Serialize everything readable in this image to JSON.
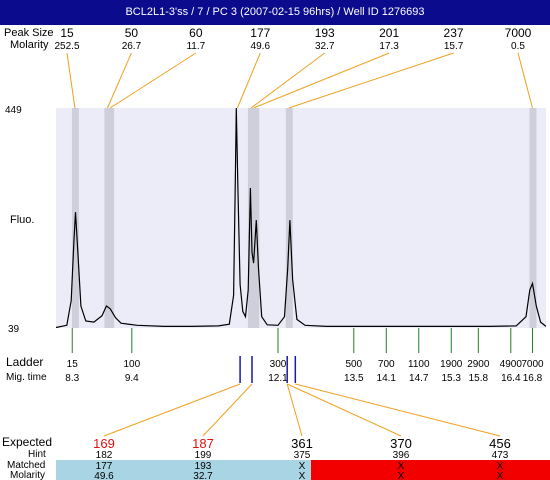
{
  "title": "BCL2L1-3'ss / 7 / PC 3 (2007-02-15 96hrs) / Well ID 1276693",
  "labels": {
    "peak_size": "Peak Size",
    "molarity": "Molarity",
    "fluo": "Fluo.",
    "ladder": "Ladder",
    "mig_time": "Mig. time",
    "expected": "Expected",
    "hint": "Hint",
    "matched": "Matched",
    "molarity2": "Molarity"
  },
  "colors": {
    "title_bg": "#0b0b8e",
    "plot_bg": "#ececf8",
    "peak_band": "#cfcfdc",
    "peak_connector": "#f0a020",
    "ladder_tick": "#208020",
    "mig_marker": "#1a1aa0",
    "expected_red": "#e31010",
    "matched_ok": "#a8d4e4",
    "matched_fail": "#f20000"
  },
  "chart_data": {
    "type": "line",
    "ylabel": "Fluo.",
    "ylim": [
      39,
      449
    ],
    "y_ticks": [
      "449",
      "39"
    ],
    "peaks": [
      {
        "size": "15",
        "molarity": "252.5",
        "time": 8.35
      },
      {
        "size": "50",
        "molarity": "26.7",
        "time": 8.95
      },
      {
        "size": "60",
        "molarity": "11.7",
        "time": 9.0
      },
      {
        "size": "177",
        "molarity": "49.6",
        "time": 11.35
      },
      {
        "size": "193",
        "molarity": "32.7",
        "time": 11.6
      },
      {
        "size": "201",
        "molarity": "17.3",
        "time": 11.65
      },
      {
        "size": "237",
        "molarity": "15.7",
        "time": 12.3
      },
      {
        "size": "7000",
        "molarity": "0.5",
        "time": 16.8
      }
    ],
    "trace": [
      [
        8.0,
        40
      ],
      [
        8.2,
        44
      ],
      [
        8.28,
        90
      ],
      [
        8.33,
        200
      ],
      [
        8.36,
        255
      ],
      [
        8.4,
        185
      ],
      [
        8.46,
        80
      ],
      [
        8.55,
        52
      ],
      [
        8.7,
        50
      ],
      [
        8.85,
        62
      ],
      [
        8.93,
        80
      ],
      [
        9.0,
        75
      ],
      [
        9.1,
        58
      ],
      [
        9.2,
        48
      ],
      [
        9.5,
        44
      ],
      [
        10.0,
        42
      ],
      [
        10.5,
        42
      ],
      [
        11.0,
        43
      ],
      [
        11.2,
        46
      ],
      [
        11.28,
        100
      ],
      [
        11.31,
        300
      ],
      [
        11.33,
        449
      ],
      [
        11.36,
        300
      ],
      [
        11.4,
        120
      ],
      [
        11.45,
        70
      ],
      [
        11.5,
        60
      ],
      [
        11.55,
        110
      ],
      [
        11.59,
        300
      ],
      [
        11.62,
        180
      ],
      [
        11.65,
        160
      ],
      [
        11.7,
        240
      ],
      [
        11.74,
        150
      ],
      [
        11.8,
        60
      ],
      [
        11.9,
        45
      ],
      [
        12.1,
        44
      ],
      [
        12.22,
        60
      ],
      [
        12.28,
        150
      ],
      [
        12.32,
        240
      ],
      [
        12.37,
        130
      ],
      [
        12.45,
        55
      ],
      [
        12.6,
        44
      ],
      [
        13.0,
        42
      ],
      [
        14.0,
        42
      ],
      [
        15.0,
        42
      ],
      [
        16.0,
        42
      ],
      [
        16.5,
        43
      ],
      [
        16.68,
        60
      ],
      [
        16.75,
        110
      ],
      [
        16.8,
        122
      ],
      [
        16.87,
        80
      ],
      [
        16.95,
        50
      ],
      [
        17.05,
        42
      ]
    ],
    "bands": [
      8.35,
      8.95,
      9.0,
      11.6,
      11.68,
      12.3,
      16.8
    ],
    "ladder": {
      "sizes": [
        "15",
        "100",
        "300",
        "500",
        "700",
        "1100",
        "1900",
        "2900",
        "4900",
        "7000"
      ],
      "times": [
        8.3,
        9.4,
        12.1,
        13.5,
        14.1,
        14.7,
        15.3,
        15.8,
        16.4,
        16.8
      ]
    },
    "mig_markers": [
      11.4,
      11.62,
      12.27,
      12.42
    ],
    "expected": [
      {
        "expected": "169",
        "hint": "182",
        "matched": "177",
        "molarity": "49.6",
        "marker": 0,
        "status": "ok",
        "highlight": true
      },
      {
        "expected": "187",
        "hint": "199",
        "matched": "193",
        "molarity": "32.7",
        "marker": 1,
        "status": "ok",
        "highlight": true
      },
      {
        "expected": "361",
        "hint": "375",
        "matched": "X",
        "molarity": "X",
        "marker": 2,
        "status": "fail",
        "highlight": false
      },
      {
        "expected": "370",
        "hint": "396",
        "matched": "X",
        "molarity": "X",
        "marker": 2,
        "status": "fail",
        "highlight": false
      },
      {
        "expected": "456",
        "hint": "473",
        "matched": "X",
        "molarity": "X",
        "marker": 3,
        "status": "fail",
        "highlight": false
      }
    ]
  }
}
